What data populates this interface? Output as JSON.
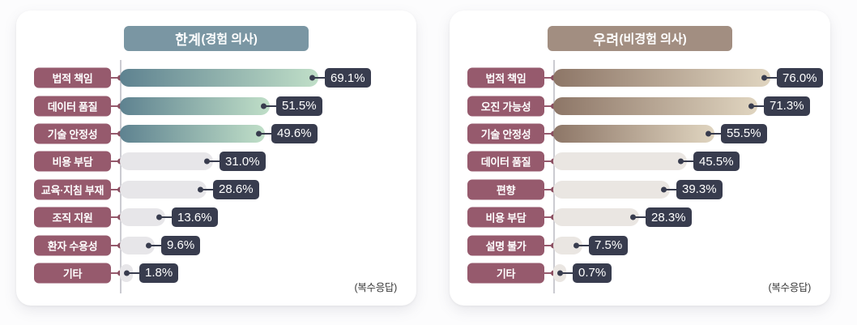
{
  "page": {
    "background": "#fcfcfd"
  },
  "shared_colors": {
    "label_badge_bg": "#965a6d",
    "label_tick": "#965a6d",
    "axis_dot": "#8a4f61",
    "value_badge_bg": "#383c4e",
    "end_dot": "#383c4e",
    "connector": "#383c4e",
    "axis_line": "#cbcbd1",
    "text_on_badge": "#ffffff",
    "footnote_text": "#3a3a3a"
  },
  "chart_data": [
    {
      "type": "bar",
      "orientation": "horizontal",
      "title": "한계(경험 의사)",
      "title_main": "한계",
      "title_sub": "(경험 의사)",
      "title_bg": "#7a96a3",
      "categories": [
        "법적 책임",
        "데이터 품질",
        "기술 안정성",
        "비용 부담",
        "교육·지침 부재",
        "조직 지원",
        "환자 수용성",
        "기타"
      ],
      "values": [
        69.1,
        51.5,
        49.6,
        31.0,
        28.6,
        13.6,
        9.6,
        1.8
      ],
      "unit": "%",
      "value_label_decimals": 1,
      "footnote": "(복수응답)",
      "highlight_count": 3,
      "bar_gradient": [
        "#5e8290",
        "#c0dfc8"
      ],
      "bar_muted": "#e7e6e9",
      "xlim": [
        0,
        80
      ],
      "grid": false,
      "legend": false
    },
    {
      "type": "bar",
      "orientation": "horizontal",
      "title": "우려(비경험 의사)",
      "title_main": "우려",
      "title_sub": "(비경험 의사)",
      "title_bg": "#a28e81",
      "categories": [
        "법적 책임",
        "오진 가능성",
        "기술 안정성",
        "데이터 품질",
        "편향",
        "비용 부담",
        "설명 불가",
        "기타"
      ],
      "values": [
        76.0,
        71.3,
        55.5,
        45.5,
        39.3,
        28.3,
        7.5,
        0.7
      ],
      "unit": "%",
      "value_label_decimals": 1,
      "footnote": "(복수응답)",
      "highlight_count": 3,
      "bar_gradient": [
        "#8d7667",
        "#e0d5c0"
      ],
      "bar_muted": "#eae6e2",
      "xlim": [
        0,
        80
      ],
      "grid": false,
      "legend": false
    }
  ]
}
